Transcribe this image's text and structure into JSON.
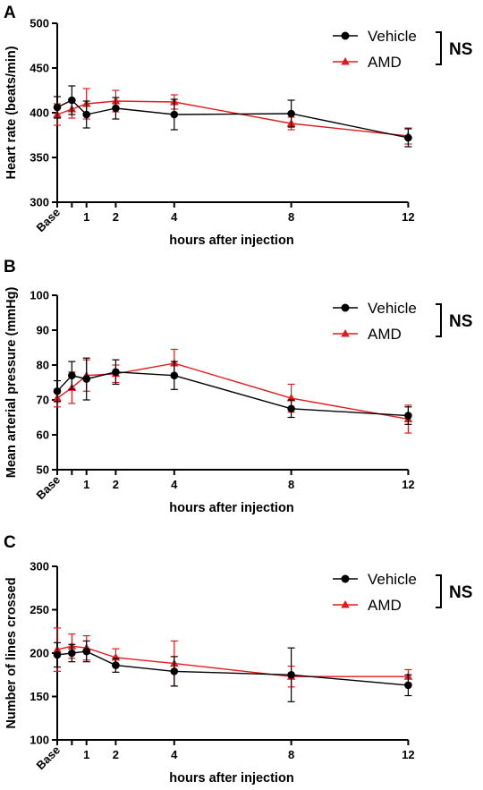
{
  "figure": {
    "colors": {
      "vehicle": "#000000",
      "amd": "#e31a1c",
      "axis": "#000000"
    }
  },
  "chart_data": [
    {
      "type": "line",
      "panel_letter": "A",
      "ylabel": "Heart rate (beats/min)",
      "xlabel": "hours after injection",
      "ylim": [
        300,
        500
      ],
      "yticks": [
        300,
        350,
        400,
        450,
        500
      ],
      "x_ticks": [
        {
          "value": 0,
          "label": "Base"
        },
        {
          "value": 1,
          "label": "1"
        },
        {
          "value": 2,
          "label": "2"
        },
        {
          "value": 4,
          "label": "4"
        },
        {
          "value": 8,
          "label": "8"
        },
        {
          "value": 12,
          "label": "12"
        }
      ],
      "x": [
        0,
        0.5,
        1,
        2,
        4,
        8,
        12
      ],
      "series": [
        {
          "name": "Vehicle",
          "marker": "circle",
          "values": [
            406,
            414,
            398,
            405,
            398,
            399,
            372
          ],
          "err": [
            12,
            16,
            15,
            12,
            17,
            15,
            10
          ]
        },
        {
          "name": "AMD",
          "marker": "triangle",
          "values": [
            398,
            404,
            410,
            413,
            412,
            388,
            374
          ],
          "err": [
            12,
            10,
            17,
            12,
            8,
            7,
            9
          ]
        }
      ],
      "significance": "NS"
    },
    {
      "type": "line",
      "panel_letter": "B",
      "ylabel": "Mean arterial pressure (mmHg)",
      "xlabel": "hours after injection",
      "ylim": [
        50,
        100
      ],
      "yticks": [
        50,
        60,
        70,
        80,
        90,
        100
      ],
      "x_ticks": [
        {
          "value": 0,
          "label": "Base"
        },
        {
          "value": 1,
          "label": "1"
        },
        {
          "value": 2,
          "label": "2"
        },
        {
          "value": 4,
          "label": "4"
        },
        {
          "value": 8,
          "label": "8"
        },
        {
          "value": 12,
          "label": "12"
        }
      ],
      "x": [
        0,
        0.5,
        1,
        2,
        4,
        8,
        12
      ],
      "series": [
        {
          "name": "Vehicle",
          "marker": "circle",
          "values": [
            72.5,
            77,
            76,
            78,
            77,
            67.5,
            65.5
          ],
          "err": [
            3,
            4,
            6,
            3.5,
            4,
            2.5,
            2.5
          ]
        },
        {
          "name": "AMD",
          "marker": "triangle",
          "values": [
            70.5,
            73.5,
            77,
            77.5,
            80.5,
            70.5,
            64.5
          ],
          "err": [
            2.5,
            4.5,
            4.5,
            2.5,
            4,
            4,
            4
          ]
        }
      ],
      "significance": "NS"
    },
    {
      "type": "line",
      "panel_letter": "C",
      "ylabel": "Number of lines crossed",
      "xlabel": "hours after injection",
      "ylim": [
        100,
        300
      ],
      "yticks": [
        100,
        150,
        200,
        250,
        300
      ],
      "x_ticks": [
        {
          "value": 0,
          "label": "Base"
        },
        {
          "value": 1,
          "label": "1"
        },
        {
          "value": 2,
          "label": "2"
        },
        {
          "value": 4,
          "label": "4"
        },
        {
          "value": 8,
          "label": "8"
        },
        {
          "value": 12,
          "label": "12"
        }
      ],
      "x": [
        0,
        0.5,
        1,
        2,
        4,
        8,
        12
      ],
      "series": [
        {
          "name": "Vehicle",
          "marker": "circle",
          "values": [
            198,
            200,
            202,
            186,
            179,
            175,
            163
          ],
          "err": [
            14,
            10,
            12,
            8,
            17,
            31,
            12
          ]
        },
        {
          "name": "AMD",
          "marker": "triangle",
          "values": [
            204,
            208,
            206,
            195,
            188,
            173,
            173
          ],
          "err": [
            25,
            14,
            14,
            10,
            26,
            12,
            8
          ]
        }
      ],
      "significance": "NS"
    }
  ]
}
